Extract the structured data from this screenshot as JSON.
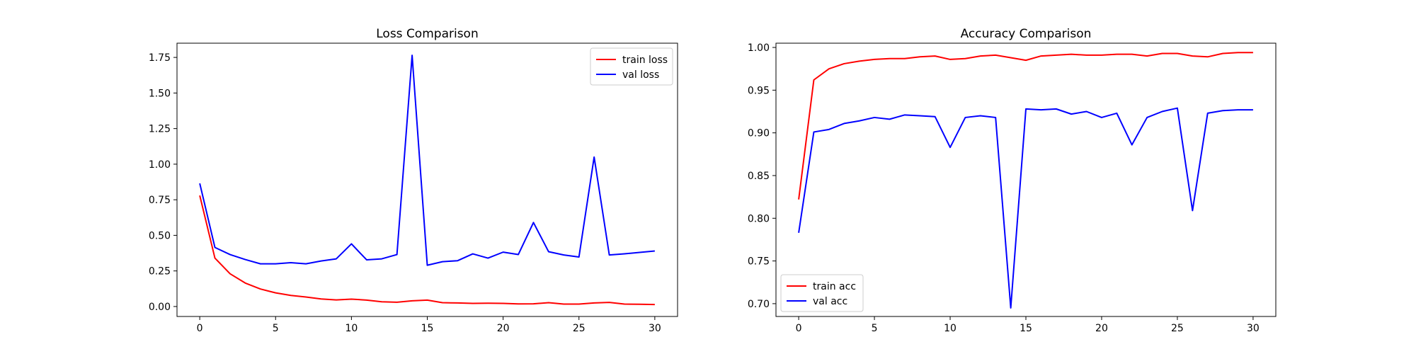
{
  "chart_data": [
    {
      "type": "line",
      "title": "Loss Comparison",
      "xlabel": "",
      "ylabel": "",
      "xlim": [
        -1.5,
        31.5
      ],
      "ylim": [
        -0.07,
        1.85
      ],
      "xticks": [
        0,
        5,
        10,
        15,
        20,
        25,
        30
      ],
      "xtick_labels": [
        "0",
        "5",
        "10",
        "15",
        "20",
        "25",
        "30"
      ],
      "yticks": [
        0.0,
        0.25,
        0.5,
        0.75,
        1.0,
        1.25,
        1.5,
        1.75
      ],
      "ytick_labels": [
        "0.00",
        "0.25",
        "0.50",
        "0.75",
        "1.00",
        "1.25",
        "1.50",
        "1.75"
      ],
      "legend_position": "top-right",
      "grid": false,
      "x": [
        0,
        1,
        2,
        3,
        4,
        5,
        6,
        7,
        8,
        9,
        10,
        11,
        12,
        13,
        14,
        15,
        16,
        17,
        18,
        19,
        20,
        21,
        22,
        23,
        24,
        25,
        26,
        27,
        28,
        29,
        30
      ],
      "series": [
        {
          "name": "train loss",
          "color": "#ff0000",
          "values": [
            0.78,
            0.34,
            0.23,
            0.165,
            0.123,
            0.096,
            0.078,
            0.067,
            0.053,
            0.046,
            0.052,
            0.045,
            0.033,
            0.03,
            0.04,
            0.045,
            0.027,
            0.025,
            0.022,
            0.023,
            0.022,
            0.018,
            0.019,
            0.027,
            0.017,
            0.017,
            0.025,
            0.029,
            0.017,
            0.016,
            0.014
          ]
        },
        {
          "name": "val loss",
          "color": "#0000ff",
          "values": [
            0.865,
            0.415,
            0.365,
            0.33,
            0.3,
            0.3,
            0.308,
            0.3,
            0.32,
            0.335,
            0.44,
            0.328,
            0.335,
            0.365,
            1.765,
            0.29,
            0.315,
            0.322,
            0.37,
            0.34,
            0.382,
            0.365,
            0.59,
            0.385,
            0.362,
            0.348,
            1.05,
            0.362,
            0.37,
            0.38,
            0.39
          ]
        }
      ]
    },
    {
      "type": "line",
      "title": "Accuracy Comparison",
      "xlabel": "",
      "ylabel": "",
      "xlim": [
        -1.5,
        31.5
      ],
      "ylim": [
        0.685,
        1.005
      ],
      "xticks": [
        0,
        5,
        10,
        15,
        20,
        25,
        30
      ],
      "xtick_labels": [
        "0",
        "5",
        "10",
        "15",
        "20",
        "25",
        "30"
      ],
      "yticks": [
        0.7,
        0.75,
        0.8,
        0.85,
        0.9,
        0.95,
        1.0
      ],
      "ytick_labels": [
        "0.70",
        "0.75",
        "0.80",
        "0.85",
        "0.90",
        "0.95",
        "1.00"
      ],
      "legend_position": "bottom-left",
      "grid": false,
      "x": [
        0,
        1,
        2,
        3,
        4,
        5,
        6,
        7,
        8,
        9,
        10,
        11,
        12,
        13,
        14,
        15,
        16,
        17,
        18,
        19,
        20,
        21,
        22,
        23,
        24,
        25,
        26,
        27,
        28,
        29,
        30
      ],
      "series": [
        {
          "name": "train acc",
          "color": "#ff0000",
          "values": [
            0.822,
            0.962,
            0.975,
            0.981,
            0.984,
            0.986,
            0.987,
            0.987,
            0.989,
            0.99,
            0.986,
            0.987,
            0.99,
            0.991,
            0.988,
            0.985,
            0.99,
            0.991,
            0.992,
            0.991,
            0.991,
            0.992,
            0.992,
            0.99,
            0.993,
            0.993,
            0.99,
            0.989,
            0.993,
            0.994,
            0.994
          ]
        },
        {
          "name": "val acc",
          "color": "#0000ff",
          "values": [
            0.783,
            0.901,
            0.904,
            0.911,
            0.914,
            0.918,
            0.916,
            0.921,
            0.92,
            0.919,
            0.883,
            0.918,
            0.92,
            0.918,
            0.695,
            0.928,
            0.927,
            0.928,
            0.922,
            0.925,
            0.918,
            0.923,
            0.886,
            0.918,
            0.925,
            0.929,
            0.809,
            0.923,
            0.926,
            0.927,
            0.927
          ]
        }
      ]
    }
  ]
}
